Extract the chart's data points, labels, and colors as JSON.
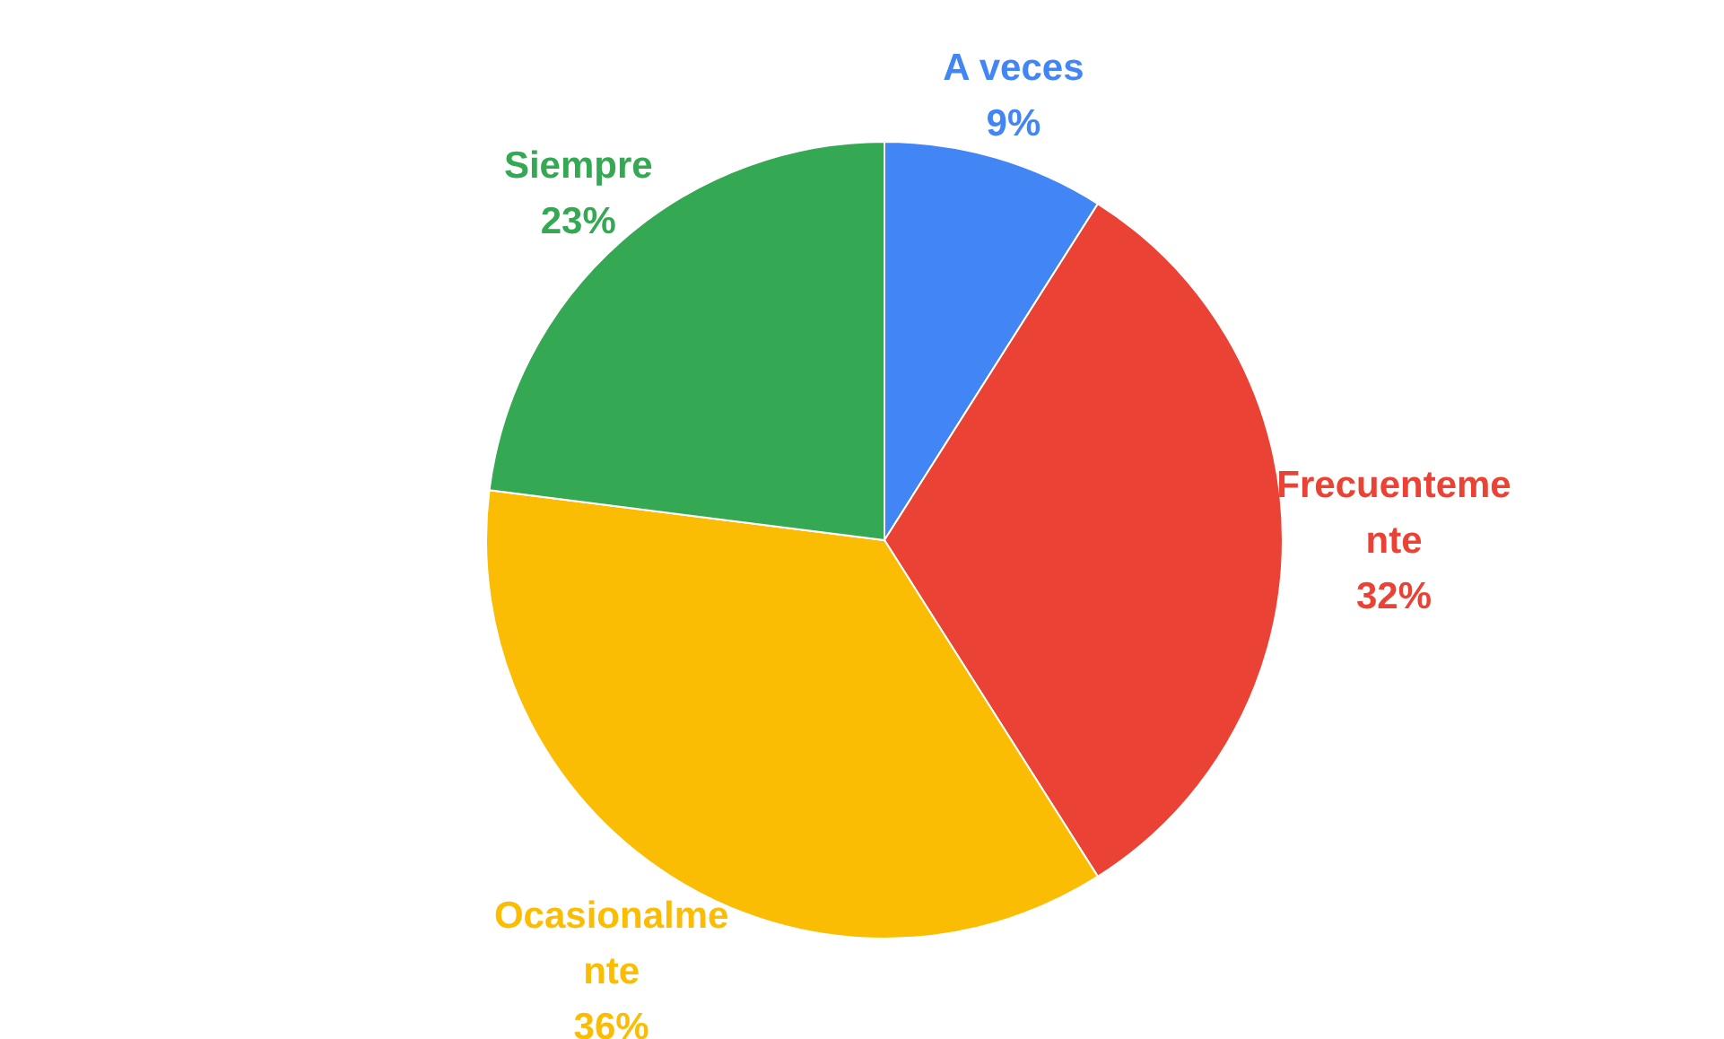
{
  "chart_data": {
    "type": "pie",
    "categories": [
      "A veces",
      "Frecuentemente",
      "Ocasionalmente",
      "Siempre"
    ],
    "values": [
      9,
      32,
      36,
      23
    ],
    "colors": [
      "#4285f4",
      "#ea4335",
      "#fbbc04",
      "#34a853"
    ],
    "value_labels": [
      "9%",
      "32%",
      "36%",
      "23%"
    ]
  }
}
